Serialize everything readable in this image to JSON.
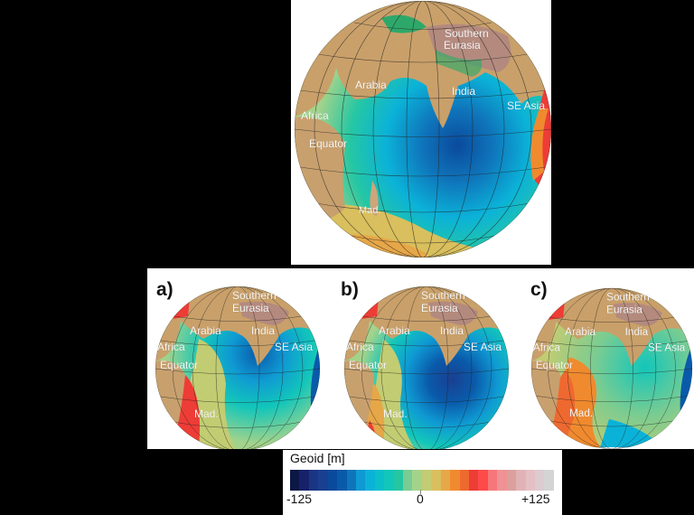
{
  "figure": {
    "top_globe": {
      "labels": [
        "Southern",
        "Eurasia",
        "Arabia",
        "India",
        "SE Asia",
        "Africa",
        "Equator",
        "Mad."
      ]
    },
    "panels": [
      {
        "label": "a)",
        "labels": [
          "Southern",
          "Eurasia",
          "Arabia",
          "India",
          "SE Asia",
          "Africa",
          "Equator",
          "Mad."
        ]
      },
      {
        "label": "b)",
        "labels": [
          "Southern",
          "Eurasia",
          "Arabia",
          "India",
          "SE Asia",
          "Africa",
          "Equator",
          "Mad."
        ]
      },
      {
        "label": "c)",
        "labels": [
          "Southern",
          "Eurasia",
          "Arabia",
          "India",
          "SE Asia",
          "Africa",
          "Equator",
          "Mad."
        ]
      }
    ],
    "legend": {
      "title": "Geoid [m]",
      "min_label": "-125",
      "mid_label": "0",
      "max_label": "+125",
      "colors": [
        "#0b1846",
        "#17216a",
        "#1b3585",
        "#1a3f91",
        "#0a4a9c",
        "#0a5aaa",
        "#0f75bb",
        "#0f9ad3",
        "#0bb2d8",
        "#0bbfc9",
        "#12c6ba",
        "#25c7a3",
        "#79cc92",
        "#a3d38b",
        "#c2cc72",
        "#d9bf5d",
        "#e6a748",
        "#f08a2e",
        "#ee6930",
        "#ee3c36",
        "#ff4a4a",
        "#f6777a",
        "#ee9295",
        "#dca09c",
        "#e2b3b6",
        "#e4c0c4",
        "#dccbd1",
        "#d4d4d4"
      ]
    }
  }
}
